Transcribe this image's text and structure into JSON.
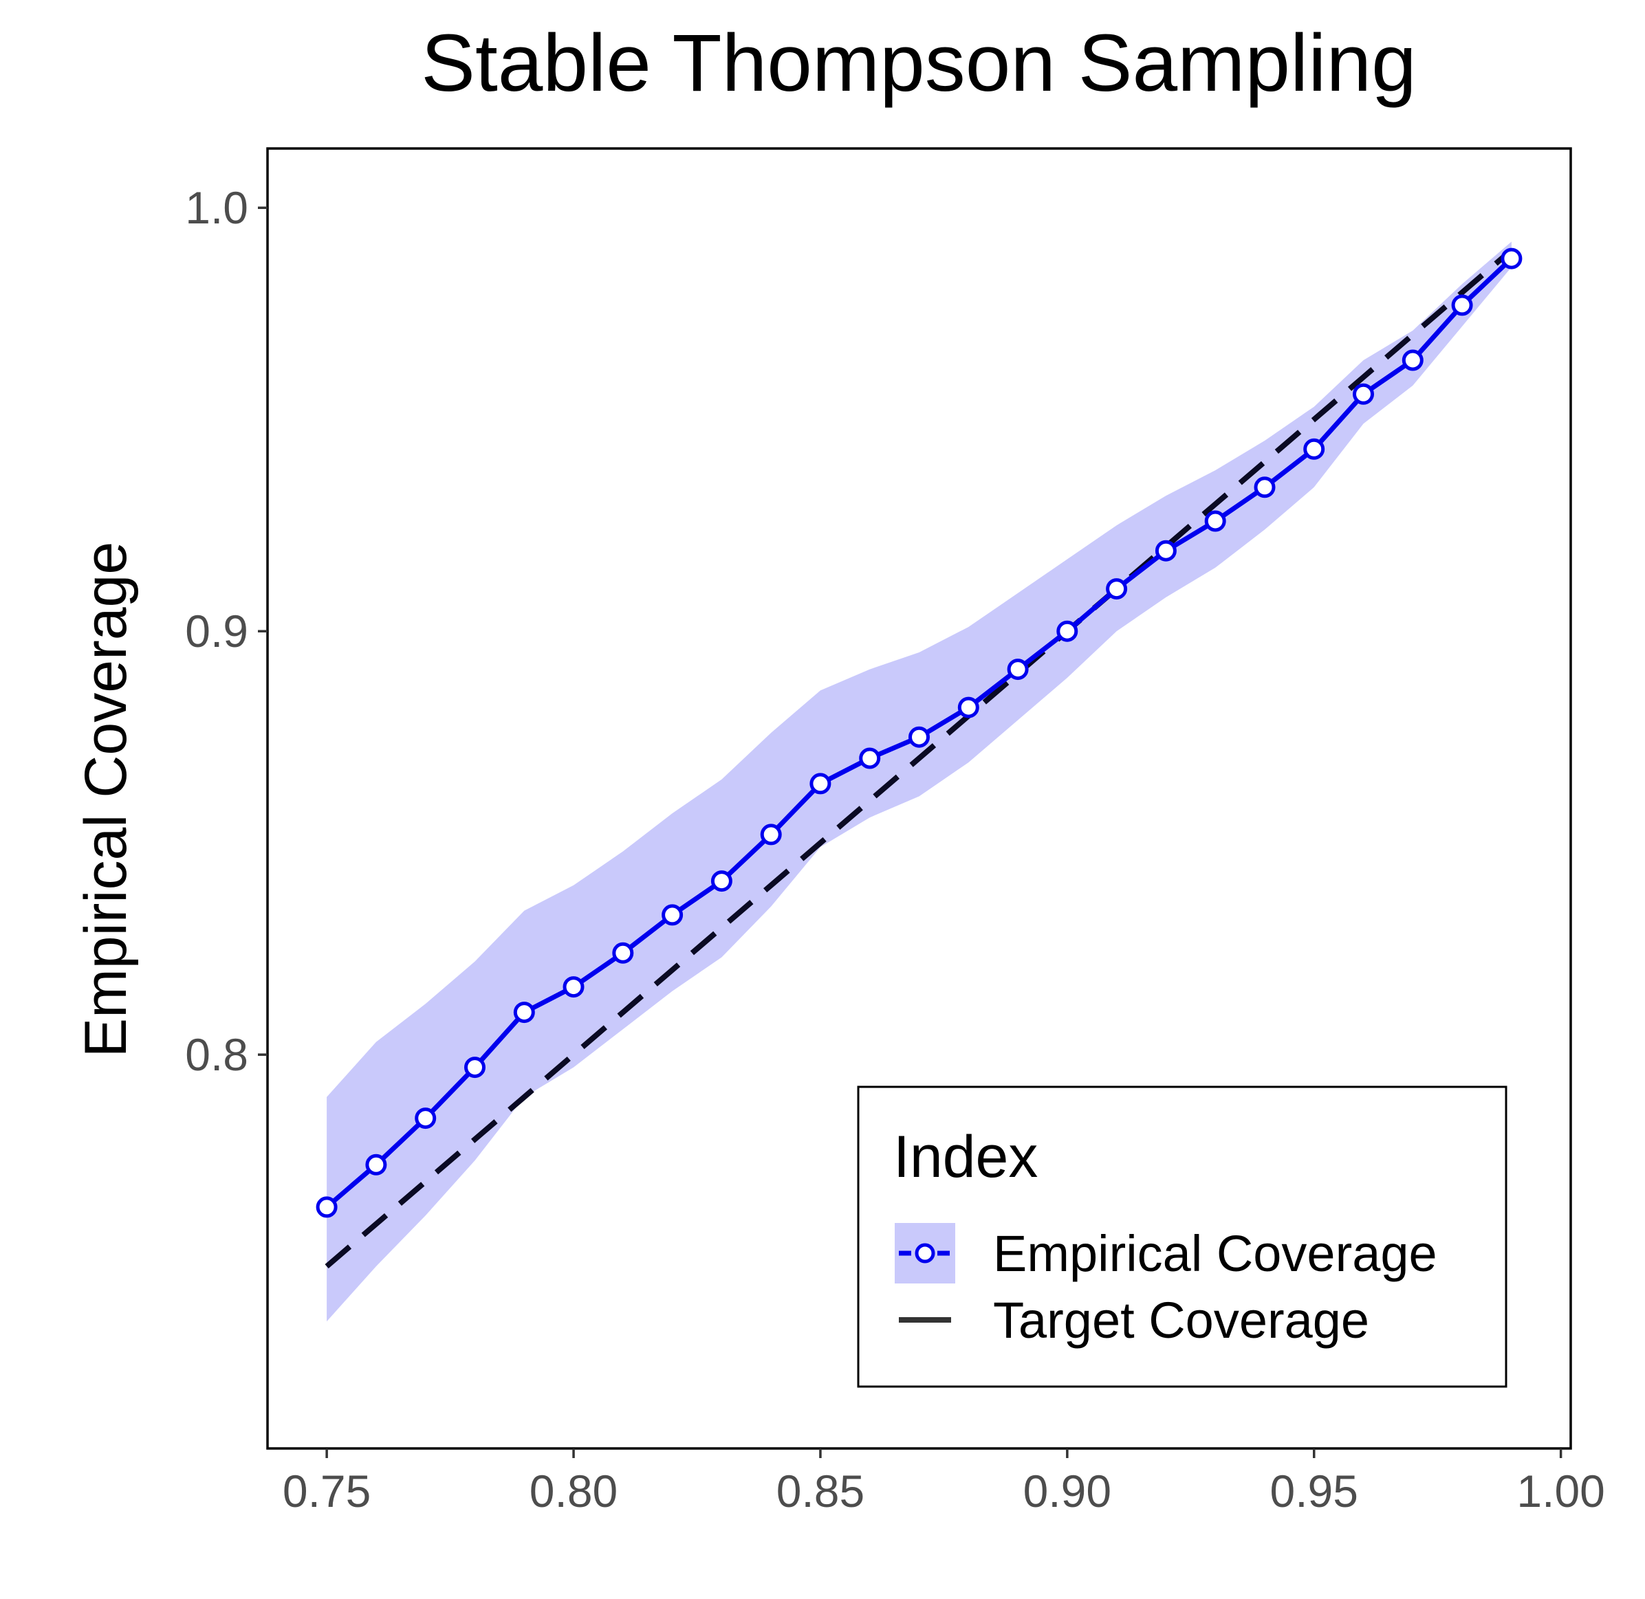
{
  "chart_data": {
    "type": "line",
    "title": "Stable Thompson Sampling",
    "xlabel": "",
    "ylabel": "Empirical Coverage",
    "xlim": [
      0.738,
      1.002
    ],
    "ylim": [
      0.707,
      1.014
    ],
    "grid": false,
    "legend_position": "bottom-right",
    "x_ticks": [
      0.75,
      0.8,
      0.85,
      0.9,
      0.95,
      1.0
    ],
    "x_tick_labels": [
      "0.75",
      "0.80",
      "0.85",
      "0.90",
      "0.95",
      "1.00"
    ],
    "y_ticks": [
      0.8,
      0.9,
      1.0
    ],
    "y_tick_labels": [
      "0.8",
      "0.9",
      "1.0"
    ],
    "legend": {
      "title": "Index",
      "entries": [
        "Empirical Coverage",
        "Target Coverage"
      ]
    },
    "x": [
      0.75,
      0.76,
      0.77,
      0.78,
      0.79,
      0.8,
      0.81,
      0.82,
      0.83,
      0.84,
      0.85,
      0.86,
      0.87,
      0.88,
      0.89,
      0.9,
      0.91,
      0.92,
      0.93,
      0.94,
      0.95,
      0.96,
      0.97,
      0.98,
      0.99
    ],
    "series": [
      {
        "name": "Empirical Coverage",
        "values": [
          0.764,
          0.774,
          0.785,
          0.797,
          0.81,
          0.816,
          0.824,
          0.833,
          0.841,
          0.852,
          0.864,
          0.87,
          0.875,
          0.882,
          0.891,
          0.9,
          0.91,
          0.919,
          0.926,
          0.934,
          0.943,
          0.956,
          0.964,
          0.977,
          0.988
        ],
        "lower": [
          0.737,
          0.75,
          0.762,
          0.775,
          0.79,
          0.797,
          0.806,
          0.815,
          0.823,
          0.835,
          0.849,
          0.856,
          0.861,
          0.869,
          0.879,
          0.889,
          0.9,
          0.908,
          0.915,
          0.924,
          0.934,
          0.949,
          0.958,
          0.972,
          0.986
        ],
        "upper": [
          0.79,
          0.803,
          0.812,
          0.822,
          0.834,
          0.84,
          0.848,
          0.857,
          0.865,
          0.876,
          0.886,
          0.891,
          0.895,
          0.901,
          0.909,
          0.917,
          0.925,
          0.932,
          0.938,
          0.945,
          0.953,
          0.964,
          0.971,
          0.982,
          0.992
        ],
        "color": "#0000ee",
        "ribbon_color": "#c9c9fb",
        "marker": "open-circle"
      },
      {
        "name": "Target Coverage",
        "values": [
          0.75,
          0.76,
          0.77,
          0.78,
          0.79,
          0.8,
          0.81,
          0.82,
          0.83,
          0.84,
          0.85,
          0.86,
          0.87,
          0.88,
          0.89,
          0.9,
          0.91,
          0.92,
          0.93,
          0.94,
          0.95,
          0.96,
          0.97,
          0.98,
          0.99
        ],
        "color": "#0a0a23",
        "style": "dashed"
      }
    ]
  }
}
